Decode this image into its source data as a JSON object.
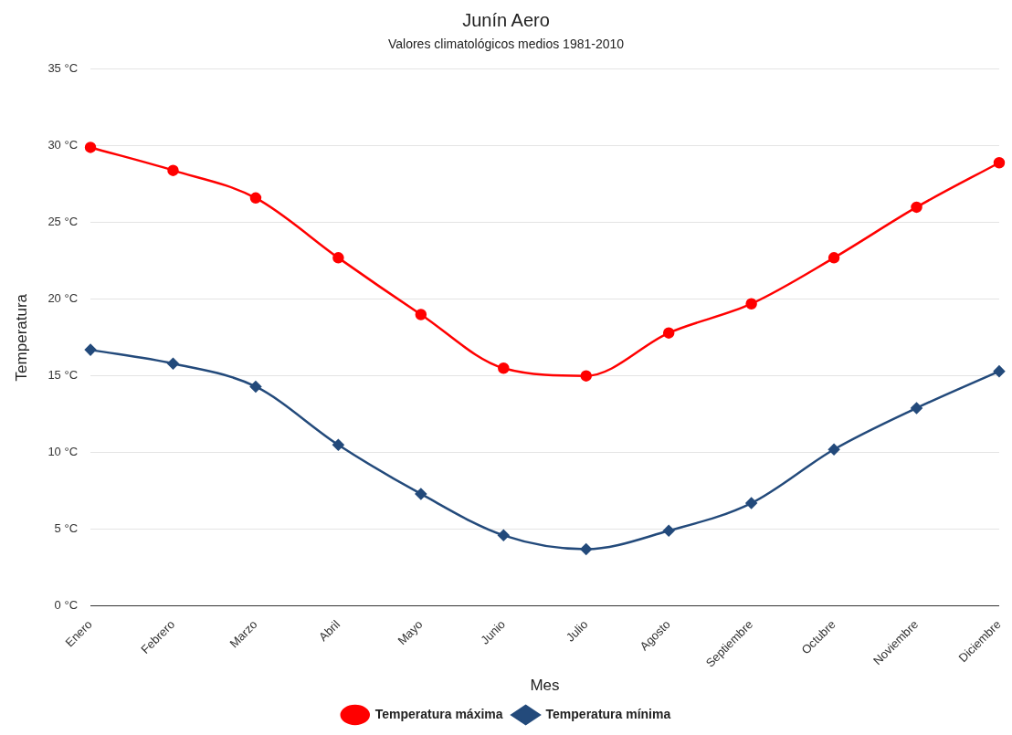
{
  "chart_data": {
    "type": "line",
    "title": "Junín Aero",
    "subtitle": "Valores climatológicos medios 1981-2010",
    "xlabel": "Mes",
    "ylabel": "Temperatura",
    "categories": [
      "Enero",
      "Febrero",
      "Marzo",
      "Abril",
      "Mayo",
      "Junio",
      "Julio",
      "Agosto",
      "Septiembre",
      "Octubre",
      "Noviembre",
      "Diciembre"
    ],
    "series": [
      {
        "name": "Temperatura máxima",
        "color": "#ff0000",
        "marker": "circle",
        "values": [
          29.9,
          28.4,
          26.6,
          22.7,
          19.0,
          15.5,
          15.0,
          17.8,
          19.7,
          22.7,
          26.0,
          28.9
        ]
      },
      {
        "name": "Temperatura mínima",
        "color": "#234a7b",
        "marker": "diamond",
        "values": [
          16.7,
          15.8,
          14.3,
          10.5,
          7.3,
          4.6,
          3.7,
          4.9,
          6.7,
          10.2,
          12.9,
          15.3
        ]
      }
    ],
    "ylim": [
      0,
      35
    ],
    "yticks": [
      {
        "value": 0,
        "label": "0 °C"
      },
      {
        "value": 5,
        "label": "5 °C"
      },
      {
        "value": 10,
        "label": "10 °C"
      },
      {
        "value": 15,
        "label": "15 °C"
      },
      {
        "value": 20,
        "label": "20 °C"
      },
      {
        "value": 25,
        "label": "25 °C"
      },
      {
        "value": 30,
        "label": "30 °C"
      },
      {
        "value": 35,
        "label": "35 °C"
      }
    ],
    "grid": "y",
    "legend": "bottom",
    "line_style": "solid"
  }
}
